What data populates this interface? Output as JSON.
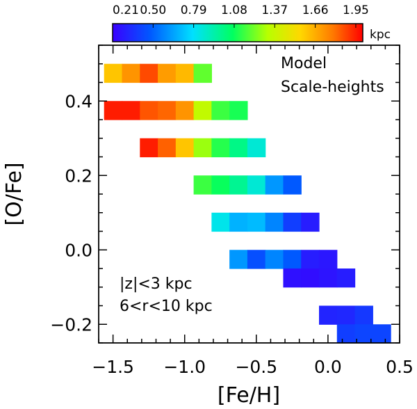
{
  "chart_data": {
    "type": "heatmap",
    "title": "",
    "xlabel": "[Fe/H]",
    "ylabel": "[O/Fe]",
    "xlim": [
      -1.6,
      0.5
    ],
    "ylim": [
      -0.25,
      0.55
    ],
    "xticks": [
      "−1.5",
      "−1.0",
      "−0.5",
      "0.0",
      "0.5"
    ],
    "yticks": [
      "−0.2",
      "0.0",
      "0.2",
      "0.4"
    ],
    "xtick_values": [
      -1.5,
      -1.0,
      -0.5,
      0.0,
      0.5
    ],
    "ytick_values": [
      -0.2,
      0.0,
      0.2,
      0.4
    ],
    "bin_width_x": 0.125,
    "bin_height_y": 0.05,
    "colorbar": {
      "unit": "kpc",
      "ticks": [
        "0.21",
        "0.50",
        "0.79",
        "1.08",
        "1.37",
        "1.66",
        "1.95"
      ],
      "tick_values": [
        0.21,
        0.5,
        0.79,
        1.08,
        1.37,
        1.66,
        1.95
      ],
      "range": [
        0.21,
        2.0
      ],
      "colormap": "rainbow"
    },
    "annotations": {
      "top_right": [
        "Model",
        "Scale-heights"
      ],
      "bottom_left": [
        "|z|<3 kpc",
        "6<r<10 kpc"
      ]
    },
    "cells": [
      {
        "feh": -1.5,
        "ofe": 0.475,
        "value": 1.6
      },
      {
        "feh": -1.375,
        "ofe": 0.475,
        "value": 1.72
      },
      {
        "feh": -1.25,
        "ofe": 0.475,
        "value": 1.87
      },
      {
        "feh": -1.125,
        "ofe": 0.475,
        "value": 1.7
      },
      {
        "feh": -1.0,
        "ofe": 0.475,
        "value": 1.63
      },
      {
        "feh": -0.875,
        "ofe": 0.475,
        "value": 1.2
      },
      {
        "feh": -1.5,
        "ofe": 0.375,
        "value": 1.95
      },
      {
        "feh": -1.375,
        "ofe": 0.375,
        "value": 1.95
      },
      {
        "feh": -1.25,
        "ofe": 0.375,
        "value": 1.85
      },
      {
        "feh": -1.125,
        "ofe": 0.375,
        "value": 1.82
      },
      {
        "feh": -1.0,
        "ofe": 0.375,
        "value": 1.72
      },
      {
        "feh": -0.875,
        "ofe": 0.375,
        "value": 1.35
      },
      {
        "feh": -0.75,
        "ofe": 0.375,
        "value": 1.15
      },
      {
        "feh": -0.625,
        "ofe": 0.375,
        "value": 1.1
      },
      {
        "feh": -1.25,
        "ofe": 0.275,
        "value": 1.95
      },
      {
        "feh": -1.125,
        "ofe": 0.275,
        "value": 1.83
      },
      {
        "feh": -1.0,
        "ofe": 0.275,
        "value": 1.6
      },
      {
        "feh": -0.875,
        "ofe": 0.275,
        "value": 1.28
      },
      {
        "feh": -0.75,
        "ofe": 0.275,
        "value": 1.12
      },
      {
        "feh": -0.625,
        "ofe": 0.275,
        "value": 1.0
      },
      {
        "feh": -0.5,
        "ofe": 0.275,
        "value": 0.86
      },
      {
        "feh": -0.875,
        "ofe": 0.175,
        "value": 1.15
      },
      {
        "feh": -0.75,
        "ofe": 0.175,
        "value": 1.08
      },
      {
        "feh": -0.625,
        "ofe": 0.175,
        "value": 0.98
      },
      {
        "feh": -0.5,
        "ofe": 0.175,
        "value": 0.86
      },
      {
        "feh": -0.375,
        "ofe": 0.175,
        "value": 0.62
      },
      {
        "feh": -0.25,
        "ofe": 0.175,
        "value": 0.48
      },
      {
        "feh": -0.75,
        "ofe": 0.075,
        "value": 0.82
      },
      {
        "feh": -0.625,
        "ofe": 0.075,
        "value": 0.68
      },
      {
        "feh": -0.5,
        "ofe": 0.075,
        "value": 0.7
      },
      {
        "feh": -0.375,
        "ofe": 0.075,
        "value": 0.58
      },
      {
        "feh": -0.25,
        "ofe": 0.075,
        "value": 0.4
      },
      {
        "feh": -0.125,
        "ofe": 0.075,
        "value": 0.3
      },
      {
        "feh": -0.625,
        "ofe": -0.025,
        "value": 0.62
      },
      {
        "feh": -0.5,
        "ofe": -0.025,
        "value": 0.45
      },
      {
        "feh": -0.375,
        "ofe": -0.025,
        "value": 0.58
      },
      {
        "feh": -0.25,
        "ofe": -0.025,
        "value": 0.48
      },
      {
        "feh": -0.125,
        "ofe": -0.025,
        "value": 0.3
      },
      {
        "feh": 0.0,
        "ofe": -0.025,
        "value": 0.28
      },
      {
        "feh": -0.25,
        "ofe": -0.075,
        "value": 0.26
      },
      {
        "feh": -0.125,
        "ofe": -0.075,
        "value": 0.25
      },
      {
        "feh": 0.0,
        "ofe": -0.075,
        "value": 0.27
      },
      {
        "feh": 0.125,
        "ofe": -0.075,
        "value": 0.3
      },
      {
        "feh": 0.0,
        "ofe": -0.175,
        "value": 0.32
      },
      {
        "feh": 0.125,
        "ofe": -0.175,
        "value": 0.33
      },
      {
        "feh": 0.25,
        "ofe": -0.175,
        "value": 0.38
      },
      {
        "feh": 0.125,
        "ofe": -0.225,
        "value": 0.4
      },
      {
        "feh": 0.25,
        "ofe": -0.225,
        "value": 0.42
      },
      {
        "feh": 0.375,
        "ofe": -0.225,
        "value": 0.42
      }
    ]
  }
}
